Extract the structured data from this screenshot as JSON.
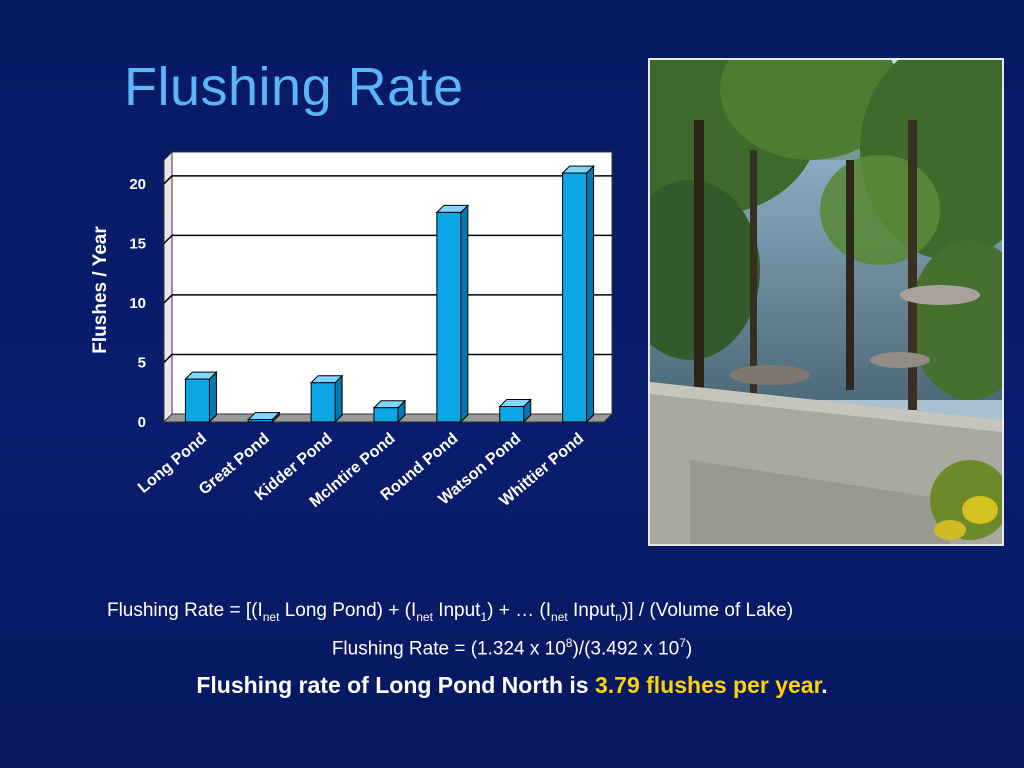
{
  "slide": {
    "title": "Flushing Rate"
  },
  "chart_data": {
    "type": "bar",
    "categories": [
      "Long Pond",
      "Great Pond",
      "Kidder Pond",
      "McIntire Pond",
      "Round Pond",
      "Watson Pond",
      "Whittier Pond"
    ],
    "values": [
      3.6,
      0.2,
      3.3,
      1.2,
      17.6,
      1.3,
      20.9
    ],
    "title": "",
    "xlabel": "",
    "ylabel": "Flushes / Year",
    "ylim": [
      0,
      22
    ],
    "yticks": [
      0,
      5,
      10,
      15,
      20
    ],
    "grid": true,
    "bar_color": "#0aa6e6"
  },
  "formulas": {
    "line1": {
      "p1": "Flushing Rate = [(I",
      "s1": "net",
      "p2": " Long Pond) + (I",
      "s2": "net",
      "p3": " Input",
      "s3": "1",
      "p4": ") + … (I",
      "s4": "net",
      "p5": " Input",
      "s5": "n",
      "p6": ")] / (Volume of Lake)"
    },
    "line2": {
      "p1": "Flushing Rate = (1.324 x 10",
      "e1": "8",
      "p2": ")/(3.492 x 10",
      "e2": "7",
      "p3": ")"
    }
  },
  "conclusion": {
    "prefix": "Flushing rate of Long Pond North is ",
    "highlight": "3.79 flushes per year",
    "suffix": "."
  },
  "colors": {
    "title": "#5bb6f7",
    "highlight": "#ffd200",
    "background": "#0a1d6e"
  }
}
